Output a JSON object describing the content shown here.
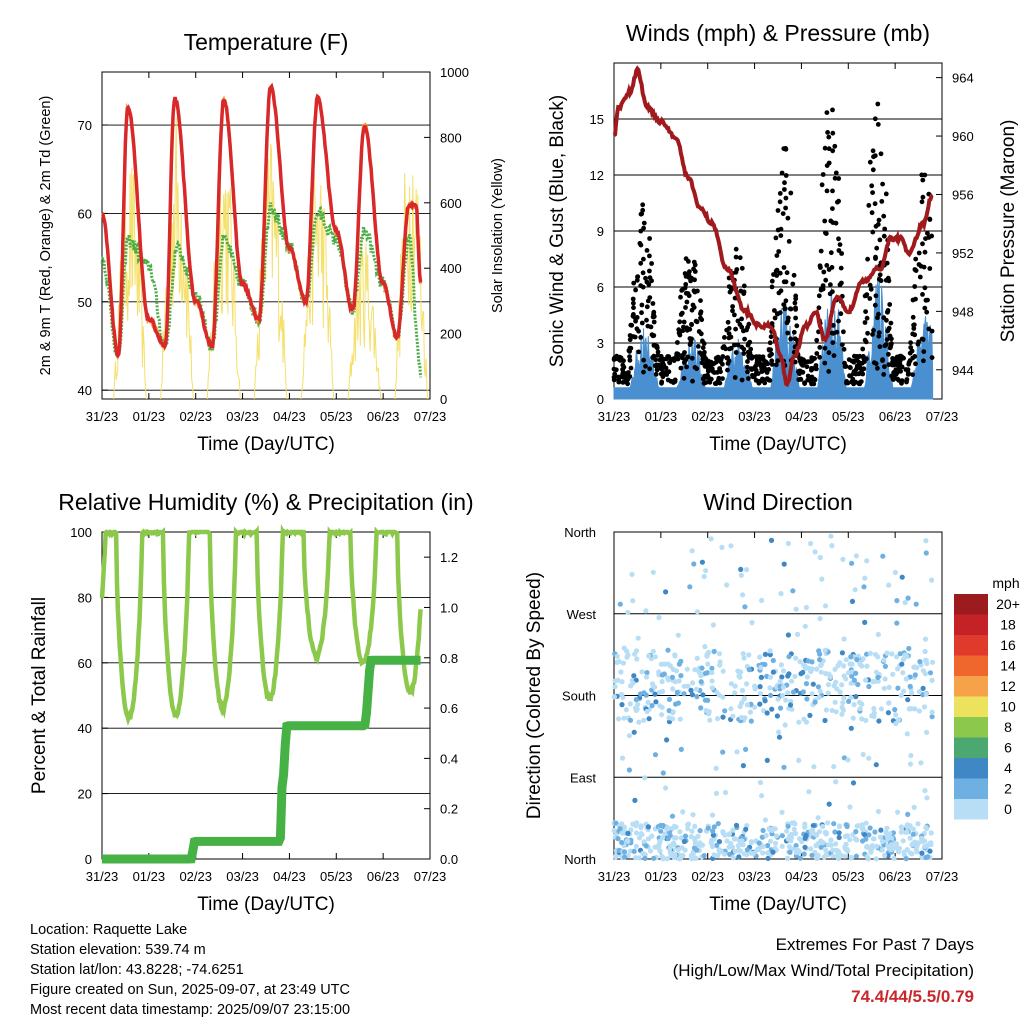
{
  "colors": {
    "temp2m": "#d9282a",
    "temp9m": "#f39c3a",
    "dew": "#4bad45",
    "solar": "#f4e06a",
    "gust": "#000000",
    "sonic": "#4a90d0",
    "pressure": "#a0191c",
    "rh": "#8cc84b",
    "precip": "#46b245",
    "extreme": "#c8282a"
  },
  "x_ticks": [
    "31/23",
    "01/23",
    "02/23",
    "03/23",
    "04/23",
    "05/23",
    "06/23",
    "07/23"
  ],
  "temperature_panel": {
    "title": "Temperature (F)",
    "ylabel": "2m & 9m T (Red, Orange) & 2m Td (Green)",
    "y2label": "Solar Insolation (Yellow)",
    "xlabel": "Time (Day/UTC)",
    "yticks": [
      "40",
      "50",
      "60",
      "70"
    ],
    "y2ticks": [
      "0",
      "200",
      "400",
      "600",
      "800",
      "1000"
    ]
  },
  "wind_panel": {
    "title": "Winds (mph) & Pressure (mb)",
    "ylabel": "Sonic Wind & Gust (Blue, Black)",
    "y2label": "Station Pressure (Maroon)",
    "xlabel": "Time (Day/UTC)",
    "yticks": [
      "0",
      "3",
      "6",
      "9",
      "12",
      "15"
    ],
    "y2ticks": [
      "944",
      "948",
      "952",
      "956",
      "960",
      "964"
    ]
  },
  "rh_panel": {
    "title": "Relative Humidity (%) & Precipitation (in)",
    "ylabel": "Percent & Total Rainfall",
    "xlabel": "Time (Day/UTC)",
    "yticks": [
      "0",
      "20",
      "40",
      "60",
      "80",
      "100"
    ],
    "y2ticks": [
      "0.0",
      "0.2",
      "0.4",
      "0.6",
      "0.8",
      "1.0",
      "1.2"
    ]
  },
  "dir_panel": {
    "title": "Wind Direction",
    "ylabel": "Direction (Colored By Speed)",
    "xlabel": "Time (Day/UTC)",
    "yticks": [
      "North",
      "East",
      "South",
      "West",
      "North"
    ]
  },
  "legend": {
    "title": "mph",
    "labels": [
      "20+",
      "18",
      "16",
      "14",
      "12",
      "10",
      "8",
      "6",
      "4",
      "2",
      "0"
    ],
    "colors": [
      "#9c1b1f",
      "#c42227",
      "#e03a2c",
      "#f0672e",
      "#f6a24a",
      "#ece25e",
      "#8cc84b",
      "#4aa870",
      "#3f88c5",
      "#6fb0e2",
      "#b8def5"
    ]
  },
  "info": {
    "location": "Location: Raquette Lake",
    "elevation": "Station elevation: 539.74 m",
    "latlon": "Station lat/lon: 43.8228; -74.6251",
    "created": "Figure created on Sun, 2025-09-07, at 23:49 UTC",
    "latest": "Most recent data timestamp: 2025/09/07 23:15:00"
  },
  "extremes": {
    "line1": "Extremes For Past 7 Days",
    "line2": "(High/Low/Max Wind/Total Precipitation)",
    "values": "74.4/44/5.5/0.79"
  },
  "chart_data": [
    {
      "type": "line",
      "title": "Temperature (F)",
      "xlabel": "Time (Day/UTC)",
      "ylabel": "2m & 9m T (Red, Orange) & 2m Td (Green)",
      "y2label": "Solar Insolation (Yellow)",
      "x": [
        "31/23",
        "01/23",
        "02/23",
        "03/23",
        "04/23",
        "05/23",
        "06/23",
        "07/23"
      ],
      "ylim": [
        39,
        76
      ],
      "y2lim": [
        0,
        1000
      ],
      "daily_temp_max": [
        72,
        73,
        73,
        74.4,
        73,
        70,
        61
      ],
      "daily_temp_min": [
        44,
        45,
        45,
        48,
        50,
        49,
        46
      ],
      "daily_dew_max": [
        57,
        56,
        57,
        61,
        60,
        58,
        57
      ],
      "series": [
        {
          "name": "2m T",
          "values_keypoints": [
            [
              0,
              60
            ],
            [
              0.35,
              44
            ],
            [
              0.55,
              72
            ],
            [
              1.0,
              48
            ],
            [
              1.35,
              45
            ],
            [
              1.55,
              73
            ],
            [
              2.0,
              50
            ],
            [
              2.35,
              45
            ],
            [
              2.6,
              73
            ],
            [
              3.0,
              52
            ],
            [
              3.35,
              48
            ],
            [
              3.6,
              74.4
            ],
            [
              4.0,
              56
            ],
            [
              4.35,
              50
            ],
            [
              4.6,
              73
            ],
            [
              5.0,
              58
            ],
            [
              5.35,
              49
            ],
            [
              5.6,
              70
            ],
            [
              6.0,
              52
            ],
            [
              6.3,
              46
            ],
            [
              6.55,
              61
            ],
            [
              6.7,
              61
            ],
            [
              6.8,
              52
            ]
          ]
        },
        {
          "name": "2m Td",
          "values_keypoints": [
            [
              0,
              55
            ],
            [
              0.35,
              44
            ],
            [
              0.55,
              57
            ],
            [
              1.0,
              54
            ],
            [
              1.35,
              45
            ],
            [
              1.6,
              56
            ],
            [
              2.0,
              51
            ],
            [
              2.35,
              45
            ],
            [
              2.6,
              57
            ],
            [
              3.0,
              52
            ],
            [
              3.35,
              48
            ],
            [
              3.6,
              61
            ],
            [
              4.0,
              56
            ],
            [
              4.35,
              50
            ],
            [
              4.6,
              60
            ],
            [
              5.0,
              57
            ],
            [
              5.35,
              49
            ],
            [
              5.6,
              58
            ],
            [
              6.0,
              52
            ],
            [
              6.3,
              46
            ],
            [
              6.55,
              57
            ],
            [
              6.8,
              42
            ]
          ]
        },
        {
          "name": "Solar",
          "daily_peak": [
            760,
            900,
            840,
            820,
            800,
            520,
            880
          ]
        }
      ]
    },
    {
      "type": "scatter",
      "title": "Winds (mph) & Pressure (mb)",
      "xlabel": "Time (Day/UTC)",
      "ylabel": "Sonic Wind & Gust (Blue, Black)",
      "y2label": "Station Pressure (Maroon)",
      "ylim": [
        0,
        18
      ],
      "y2lim": [
        942,
        965
      ],
      "gust_daily_max": [
        9,
        7.5,
        7,
        13,
        16,
        16,
        12
      ],
      "pressure_keypoints": [
        [
          0,
          960
        ],
        [
          0.1,
          962
        ],
        [
          0.35,
          963
        ],
        [
          0.5,
          964.5
        ],
        [
          0.7,
          962
        ],
        [
          1.0,
          961
        ],
        [
          1.3,
          960
        ],
        [
          1.6,
          957
        ],
        [
          1.85,
          955
        ],
        [
          2.1,
          954
        ],
        [
          2.4,
          951
        ],
        [
          2.8,
          948
        ],
        [
          3.1,
          947
        ],
        [
          3.35,
          947
        ],
        [
          3.55,
          945
        ],
        [
          3.7,
          943
        ],
        [
          3.85,
          945
        ],
        [
          4.1,
          947
        ],
        [
          4.3,
          948
        ],
        [
          4.5,
          946
        ],
        [
          4.75,
          949
        ],
        [
          5.0,
          948
        ],
        [
          5.3,
          950
        ],
        [
          5.7,
          951
        ],
        [
          5.9,
          953
        ],
        [
          6.1,
          953
        ],
        [
          6.3,
          952
        ],
        [
          6.6,
          954
        ],
        [
          6.8,
          956
        ]
      ]
    },
    {
      "type": "line",
      "title": "Relative Humidity (%) & Precipitation (in)",
      "xlabel": "Time (Day/UTC)",
      "ylabel": "Percent & Total Rainfall",
      "ylim": [
        0,
        100
      ],
      "y2lim": [
        0,
        1.3
      ],
      "rh_daily_min": [
        43,
        44,
        46,
        49,
        62,
        60,
        51
      ],
      "precip_steps": [
        [
          0,
          0
        ],
        [
          1.9,
          0
        ],
        [
          1.98,
          0.07
        ],
        [
          3.8,
          0.07
        ],
        [
          3.85,
          0.3
        ],
        [
          3.95,
          0.53
        ],
        [
          5.6,
          0.53
        ],
        [
          5.75,
          0.79
        ],
        [
          6.8,
          0.79
        ]
      ],
      "total_precip": 0.79
    },
    {
      "type": "scatter",
      "title": "Wind Direction",
      "xlabel": "Time (Day/UTC)",
      "ylabel": "Direction (Colored By Speed)",
      "y_categories": [
        "North",
        "East",
        "South",
        "West",
        "North"
      ],
      "color_scale_mph": [
        "0",
        "2",
        "4",
        "6",
        "8",
        "10",
        "12",
        "14",
        "16",
        "18",
        "20+"
      ]
    }
  ]
}
